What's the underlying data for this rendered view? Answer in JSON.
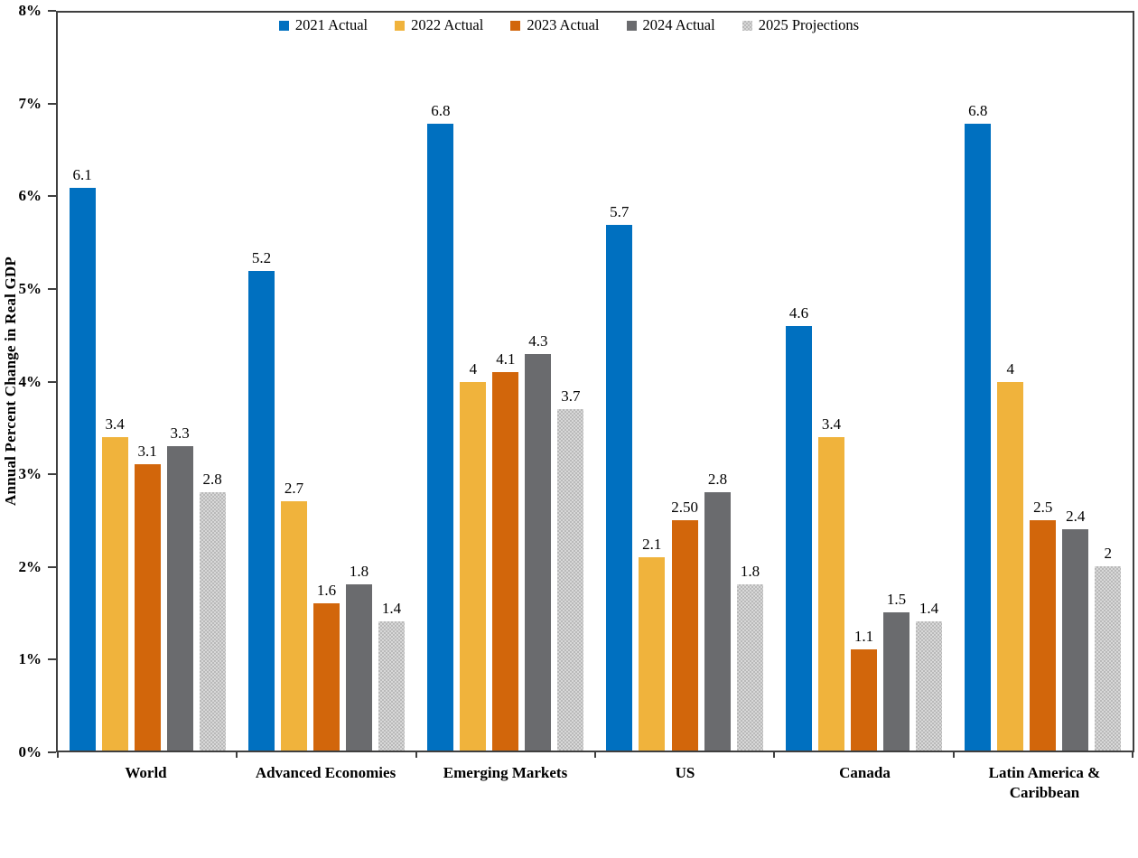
{
  "chart_data": {
    "type": "bar",
    "title": "",
    "ylabel": "Annual Percent Change in Real GDP",
    "xlabel": "",
    "ylim": [
      0,
      8
    ],
    "grid": false,
    "legend_position": "top-center",
    "axis_color": "#3f3f3f",
    "yticks": [
      {
        "value": 0,
        "label": "0%"
      },
      {
        "value": 1,
        "label": "1%"
      },
      {
        "value": 2,
        "label": "2%"
      },
      {
        "value": 3,
        "label": "3%"
      },
      {
        "value": 4,
        "label": "4%"
      },
      {
        "value": 5,
        "label": "5%"
      },
      {
        "value": 6,
        "label": "6%"
      },
      {
        "value": 7,
        "label": "7%"
      },
      {
        "value": 8,
        "label": "8%"
      }
    ],
    "categories": [
      "World",
      "Advanced Economies",
      "Emerging Markets",
      "US",
      "Canada",
      "Latin America & Caribbean"
    ],
    "series": [
      {
        "name": "2021 Actual",
        "color": "#0070C0",
        "pattern": "solid",
        "values": [
          6.1,
          5.2,
          6.8,
          5.7,
          4.6,
          6.8
        ],
        "labels": [
          "6.1",
          "5.2",
          "6.8",
          "5.7",
          "4.6",
          "6.8"
        ]
      },
      {
        "name": "2022 Actual",
        "color": "#F0B33C",
        "pattern": "solid",
        "values": [
          3.4,
          2.7,
          4.0,
          2.1,
          3.4,
          4.0
        ],
        "labels": [
          "3.4",
          "2.7",
          "4",
          "2.1",
          "3.4",
          "4"
        ]
      },
      {
        "name": "2023 Actual",
        "color": "#D2660B",
        "pattern": "solid",
        "values": [
          3.1,
          1.6,
          4.1,
          2.5,
          1.1,
          2.5
        ],
        "labels": [
          "3.1",
          "1.6",
          "4.1",
          "2.50",
          "1.1",
          "2.5"
        ]
      },
      {
        "name": "2024 Actual",
        "color": "#6A6B6E",
        "pattern": "solid",
        "values": [
          3.3,
          1.8,
          4.3,
          2.8,
          1.5,
          2.4
        ],
        "labels": [
          "3.3",
          "1.8",
          "4.3",
          "2.8",
          "1.5",
          "2.4"
        ]
      },
      {
        "name": "2025 Projections",
        "color": "#CFCFCF",
        "pattern": "dotted",
        "values": [
          2.8,
          1.4,
          3.7,
          1.8,
          1.4,
          2.0
        ],
        "labels": [
          "2.8",
          "1.4",
          "3.7",
          "1.8",
          "1.4",
          "2"
        ]
      }
    ]
  }
}
